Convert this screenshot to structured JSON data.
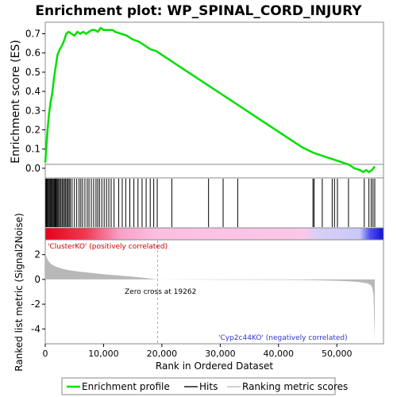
{
  "chart_data": [
    {
      "panel": "enrichment",
      "type": "line",
      "title": "Enrichment plot: WP_SPINAL_CORD_INJURY",
      "ylabel": "Enrichment score (ES)",
      "xlim": [
        0,
        58000
      ],
      "ylim": [
        -0.05,
        0.76
      ],
      "yticks": [
        "0.0",
        "0.1",
        "0.2",
        "0.3",
        "0.4",
        "0.5",
        "0.6",
        "0.7"
      ],
      "grid": false,
      "series": [
        {
          "name": "Enrichment profile",
          "color": "#00e000",
          "x": [
            0,
            200,
            400,
            600,
            900,
            1200,
            1500,
            1800,
            2100,
            2500,
            2900,
            3300,
            3600,
            4000,
            4500,
            5000,
            5500,
            6000,
            6500,
            7000,
            7500,
            8000,
            8500,
            9000,
            9500,
            10000,
            10500,
            11000,
            11500,
            12000,
            13000,
            14000,
            15000,
            16000,
            17000,
            18000,
            19000,
            20000,
            22000,
            25000,
            28000,
            30000,
            33000,
            36000,
            40000,
            44000,
            46000,
            48000,
            50000,
            52000,
            53000,
            54000,
            54500,
            55000,
            55500,
            56000,
            56500
          ],
          "y": [
            0.03,
            0.12,
            0.2,
            0.27,
            0.34,
            0.39,
            0.47,
            0.53,
            0.59,
            0.62,
            0.64,
            0.67,
            0.7,
            0.71,
            0.7,
            0.69,
            0.71,
            0.7,
            0.71,
            0.7,
            0.71,
            0.72,
            0.72,
            0.71,
            0.73,
            0.72,
            0.72,
            0.72,
            0.72,
            0.71,
            0.7,
            0.69,
            0.67,
            0.66,
            0.64,
            0.62,
            0.61,
            0.59,
            0.55,
            0.49,
            0.43,
            0.39,
            0.33,
            0.27,
            0.19,
            0.11,
            0.08,
            0.06,
            0.04,
            0.02,
            0.0,
            -0.01,
            -0.02,
            -0.01,
            -0.02,
            -0.01,
            0.01
          ]
        }
      ]
    },
    {
      "panel": "hits",
      "type": "scatter",
      "legend_label": "Hits",
      "hit_positions": [
        100,
        200,
        350,
        500,
        650,
        800,
        950,
        1100,
        1250,
        1400,
        1550,
        1700,
        1850,
        2000,
        2150,
        2300,
        2500,
        2700,
        2900,
        3100,
        3300,
        3500,
        3700,
        3900,
        4100,
        4300,
        4600,
        5000,
        5400,
        5800,
        6100,
        6400,
        6800,
        7200,
        7500,
        7900,
        8300,
        8700,
        9000,
        9300,
        9700,
        10100,
        10500,
        10900,
        11300,
        11800,
        12600,
        13200,
        13800,
        14500,
        15200,
        15900,
        16600,
        17300,
        18000,
        18600,
        19200,
        21700,
        28000,
        30500,
        33000,
        45900,
        46100,
        47500,
        49200,
        49600,
        50100,
        52000,
        54700,
        55500,
        55900,
        56200,
        56500
      ]
    },
    {
      "panel": "ranking_metric",
      "type": "area",
      "ylabel": "Ranked list metric (Signal2Noise)",
      "xlabel": "Rank in Ordered Dataset",
      "xlim": [
        0,
        58000
      ],
      "ylim": [
        -5.2,
        3.2
      ],
      "xticks": [
        "0",
        "10,000",
        "20,000",
        "30,000",
        "40,000",
        "50,000"
      ],
      "xtick_values": [
        0,
        10000,
        20000,
        30000,
        40000,
        50000
      ],
      "yticks": [
        "-4",
        "-2",
        "0",
        "2"
      ],
      "ytick_values": [
        -4,
        -2,
        0,
        2
      ],
      "zero_cross": 19262,
      "x": [
        0,
        100,
        300,
        600,
        1000,
        1500,
        2000,
        3000,
        4000,
        6000,
        8000,
        10000,
        13000,
        16000,
        19262,
        25000,
        30000,
        35000,
        40000,
        45000,
        48000,
        50000,
        52000,
        53500,
        54500,
        55300,
        55800,
        56100,
        56300,
        56500
      ],
      "values": [
        2.3,
        2.0,
        1.7,
        1.45,
        1.25,
        1.1,
        1.0,
        0.85,
        0.75,
        0.62,
        0.52,
        0.42,
        0.3,
        0.18,
        0.0,
        -0.01,
        -0.02,
        -0.03,
        -0.04,
        -0.05,
        -0.08,
        -0.11,
        -0.15,
        -0.2,
        -0.26,
        -0.33,
        -0.45,
        -0.7,
        -1.3,
        -5.0
      ]
    }
  ],
  "labels": {
    "positive": "'ClusterKO' (positively correlated)",
    "negative": "'Cyp2c44KO' (negatively correlated)",
    "zero_cross": "Zero cross at 19262"
  },
  "legend": [
    {
      "label": "Enrichment profile",
      "color": "#00e000"
    },
    {
      "label": "Hits",
      "color": "#555555"
    },
    {
      "label": "Ranking metric scores",
      "color": "#d0d0d0"
    }
  ],
  "colors": {
    "profile": "#00e000",
    "hit": "#000000",
    "metric_fill": "#b8b8b8",
    "positive_text": "#cc0000",
    "negative_text": "#3333cc",
    "zero_line": "#aaaaaa"
  }
}
